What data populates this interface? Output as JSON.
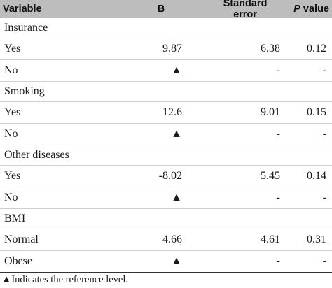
{
  "header": {
    "col_variable": "Variable",
    "col_b": "B",
    "col_se": "Standard error",
    "col_p_italic": "P",
    "col_p_rest": " value"
  },
  "groups": [
    {
      "name": "Insurance",
      "rows": [
        {
          "label": "Yes",
          "b": "9.87",
          "se": "6.38",
          "p": "0.12"
        },
        {
          "label": "No",
          "b": "▲",
          "se": "-",
          "p": "-"
        }
      ]
    },
    {
      "name": "Smoking",
      "rows": [
        {
          "label": "Yes",
          "b": "12.6",
          "se": "9.01",
          "p": "0.15"
        },
        {
          "label": "No",
          "b": "▲",
          "se": "-",
          "p": "-"
        }
      ]
    },
    {
      "name": "Other diseases",
      "rows": [
        {
          "label": "Yes",
          "b": "-8.02",
          "se": "5.45",
          "p": "0.14"
        },
        {
          "label": "No",
          "b": "▲",
          "se": "-",
          "p": "-"
        }
      ]
    },
    {
      "name": "BMI",
      "rows": [
        {
          "label": "Normal",
          "b": "4.66",
          "se": "4.61",
          "p": "0.31"
        },
        {
          "label": "Obese",
          "b": "▲",
          "se": "-",
          "p": "-"
        }
      ]
    }
  ],
  "footnote": "▲Indicates the reference level."
}
